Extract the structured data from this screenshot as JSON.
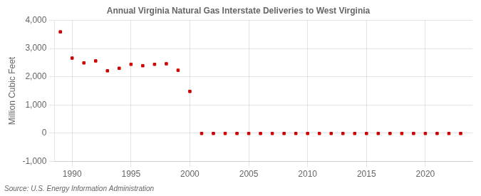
{
  "chart_data": {
    "type": "scatter",
    "title": "Annual Virginia Natural Gas Interstate Deliveries to West Virginia",
    "ylabel": "Million Cubic Feet",
    "annotations": [
      "Source: U.S. Energy Information Administration"
    ],
    "x": [
      1989,
      1990,
      1991,
      1992,
      1993,
      1994,
      1995,
      1996,
      1997,
      1998,
      1999,
      2000,
      2001,
      2002,
      2003,
      2004,
      2005,
      2006,
      2007,
      2008,
      2009,
      2010,
      2011,
      2012,
      2013,
      2014,
      2015,
      2016,
      2017,
      2018,
      2019,
      2020,
      2021,
      2022,
      2023
    ],
    "values": [
      3590,
      2660,
      2490,
      2560,
      2210,
      2300,
      2440,
      2390,
      2440,
      2460,
      2230,
      1480,
      -8,
      -8,
      -8,
      -8,
      -8,
      -8,
      -8,
      -8,
      -8,
      -8,
      -8,
      -8,
      -8,
      -8,
      -8,
      -8,
      -8,
      -8,
      -8,
      -8,
      -8,
      -8,
      -8
    ],
    "color": "#cc0000",
    "marker": "square",
    "xlim": [
      1988.5,
      2024
    ],
    "ylim": [
      -1000,
      4000
    ],
    "xticks": [
      1990,
      1995,
      2000,
      2005,
      2010,
      2015,
      2020
    ],
    "yticks": [
      {
        "value": -1000,
        "label": "-1,000"
      },
      0,
      {
        "value": 1000,
        "label": "1,000"
      },
      {
        "value": 2000,
        "label": "2,000"
      },
      {
        "value": 3000,
        "label": "3,000"
      },
      {
        "value": 4000,
        "label": "4,000"
      }
    ],
    "grid": true
  }
}
